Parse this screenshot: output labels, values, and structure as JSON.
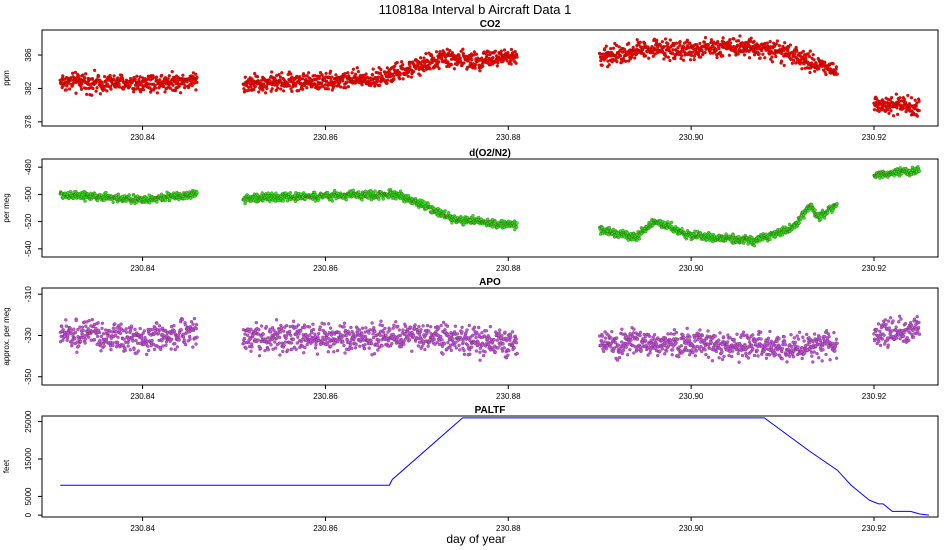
{
  "figure": {
    "title": "110818a   Interval b Aircraft Data 1",
    "xlabel": "day of year"
  },
  "chart_data": [
    {
      "type": "scatter",
      "title": "CO2",
      "ylabel": "ppm",
      "xlim": [
        230.829,
        230.927
      ],
      "ylim": [
        377.5,
        389.0
      ],
      "xticks": [
        230.84,
        230.86,
        230.88,
        230.9,
        230.92
      ],
      "xtick_labels": [
        "230.84",
        "230.86",
        "230.88",
        "230.90",
        "230.92"
      ],
      "yticks": [
        378,
        382,
        386
      ],
      "ytick_labels": [
        "378",
        "382",
        "386"
      ],
      "color": "#ff0000",
      "profile": [
        [
          230.831,
          382.8
        ],
        [
          230.838,
          382.6
        ],
        [
          230.845,
          382.9
        ],
        [
          230.851,
          382.6
        ],
        [
          230.86,
          382.9
        ],
        [
          230.866,
          383.2
        ],
        [
          230.87,
          384.6
        ],
        [
          230.873,
          385.7
        ],
        [
          230.876,
          385.3
        ],
        [
          230.881,
          385.8
        ],
        [
          230.89,
          385.6
        ],
        [
          230.895,
          386.8
        ],
        [
          230.9,
          386.6
        ],
        [
          230.905,
          387.2
        ],
        [
          230.909,
          386.6
        ],
        [
          230.912,
          385.5
        ],
        [
          230.915,
          384.5
        ],
        [
          230.92,
          380.4
        ],
        [
          230.925,
          379.6
        ]
      ],
      "segments": [
        [
          230.831,
          230.846
        ],
        [
          230.851,
          230.881
        ],
        [
          230.89,
          230.916
        ],
        [
          230.92,
          230.925
        ]
      ],
      "noise": 0.9
    },
    {
      "type": "scatter",
      "title": "d(O2/N2)",
      "ylabel": "per meg",
      "xlim": [
        230.829,
        230.927
      ],
      "ylim": [
        -546,
        -474
      ],
      "xticks": [
        230.84,
        230.86,
        230.88,
        230.9,
        230.92
      ],
      "xtick_labels": [
        "230.84",
        "230.86",
        "230.88",
        "230.90",
        "230.92"
      ],
      "yticks": [
        -540,
        -520,
        -500,
        -480
      ],
      "ytick_labels": [
        "-540",
        "-520",
        "-500",
        "-480"
      ],
      "color": "#22ee22",
      "profile": [
        [
          230.831,
          -500
        ],
        [
          230.84,
          -504
        ],
        [
          230.846,
          -500
        ],
        [
          230.851,
          -503
        ],
        [
          230.86,
          -501
        ],
        [
          230.868,
          -500
        ],
        [
          230.871,
          -509
        ],
        [
          230.874,
          -518
        ],
        [
          230.878,
          -521
        ],
        [
          230.881,
          -523
        ],
        [
          230.89,
          -526
        ],
        [
          230.894,
          -531
        ],
        [
          230.896,
          -520
        ],
        [
          230.9,
          -530
        ],
        [
          230.907,
          -534
        ],
        [
          230.911,
          -525
        ],
        [
          230.913,
          -508
        ],
        [
          230.914,
          -517
        ],
        [
          230.92,
          -486
        ],
        [
          230.925,
          -482
        ]
      ],
      "segments": [
        [
          230.831,
          230.846
        ],
        [
          230.851,
          230.881
        ],
        [
          230.89,
          230.916
        ],
        [
          230.92,
          230.925
        ]
      ],
      "noise": 2.5
    },
    {
      "type": "scatter",
      "title": "APO",
      "ylabel": "approx. per meg",
      "xlim": [
        230.829,
        230.927
      ],
      "ylim": [
        -354,
        -307
      ],
      "xticks": [
        230.84,
        230.86,
        230.88,
        230.9,
        230.92
      ],
      "xtick_labels": [
        "230.84",
        "230.86",
        "230.88",
        "230.90",
        "230.92"
      ],
      "yticks": [
        -350,
        -330,
        -310
      ],
      "ytick_labels": [
        "-350",
        "-330",
        "-310"
      ],
      "color": "#bb55ee",
      "profile": [
        [
          230.831,
          -329
        ],
        [
          230.84,
          -332
        ],
        [
          230.846,
          -328
        ],
        [
          230.851,
          -331
        ],
        [
          230.86,
          -331
        ],
        [
          230.87,
          -331
        ],
        [
          230.881,
          -334
        ],
        [
          230.89,
          -334
        ],
        [
          230.9,
          -334
        ],
        [
          230.91,
          -336
        ],
        [
          230.916,
          -334
        ],
        [
          230.92,
          -330
        ],
        [
          230.925,
          -327
        ]
      ],
      "segments": [
        [
          230.831,
          230.846
        ],
        [
          230.851,
          230.881
        ],
        [
          230.89,
          230.916
        ],
        [
          230.92,
          230.925
        ]
      ],
      "noise": 5.5
    },
    {
      "type": "line",
      "title": "PALTF",
      "ylabel": "feet",
      "xlim": [
        230.829,
        230.927
      ],
      "ylim": [
        -500,
        26500
      ],
      "xticks": [
        230.84,
        230.86,
        230.88,
        230.9,
        230.92
      ],
      "xtick_labels": [
        "230.84",
        "230.86",
        "230.88",
        "230.90",
        "230.92"
      ],
      "yticks": [
        0,
        5000,
        15000,
        25000
      ],
      "ytick_labels": [
        "0",
        "5000",
        "15000",
        "25000"
      ],
      "color": "#0000ff",
      "x": [
        230.831,
        230.867,
        230.8673,
        230.875,
        230.908,
        230.913,
        230.916,
        230.9175,
        230.9195,
        230.9205,
        230.921,
        230.922,
        230.924,
        230.925,
        230.926
      ],
      "y": [
        8000,
        8000,
        9500,
        26000,
        26000,
        17000,
        12000,
        8000,
        4000,
        3000,
        3000,
        1000,
        1000,
        300,
        0
      ]
    }
  ]
}
